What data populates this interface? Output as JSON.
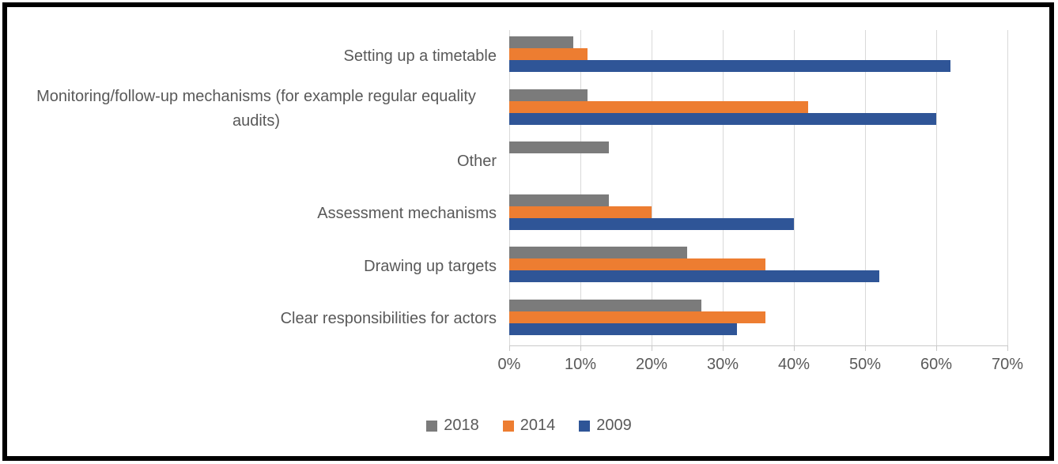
{
  "figure": {
    "background_color": "#FFFFFF",
    "border_color": "#000000",
    "gridline_color": "#D9D9D9",
    "axis_line_color": "#C9C9C9",
    "axis_text_color": "#595959"
  },
  "chart_data": {
    "type": "bar",
    "orientation": "horizontal",
    "title": "",
    "xlabel": "",
    "ylabel": "",
    "categories": [
      "Setting up a timetable",
      "Monitoring/follow-up mechanisms (for example regular equality audits)",
      "Other",
      "Assessment mechanisms",
      "Drawing up targets",
      "Clear responsibilities for actors"
    ],
    "series": [
      {
        "name": "2018",
        "color": "#7B7B7B",
        "values": [
          9,
          11,
          14,
          14,
          25,
          27
        ]
      },
      {
        "name": "2014",
        "color": "#ED7D31",
        "values": [
          11,
          42,
          0,
          20,
          36,
          36
        ]
      },
      {
        "name": "2009",
        "color": "#2F5597",
        "values": [
          62,
          60,
          0,
          40,
          52,
          32
        ]
      }
    ],
    "xlim": [
      0,
      70
    ],
    "x_tick_step": 10,
    "x_ticks": [
      "0%",
      "10%",
      "20%",
      "30%",
      "40%",
      "50%",
      "60%",
      "70%"
    ],
    "grid": true,
    "legend_position": "bottom"
  }
}
